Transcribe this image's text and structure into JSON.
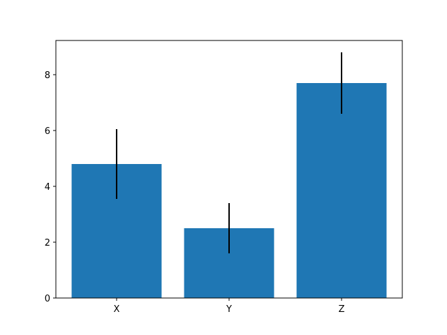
{
  "chart_data": {
    "type": "bar",
    "categories": [
      "X",
      "Y",
      "Z"
    ],
    "values": [
      4.8,
      2.5,
      7.7
    ],
    "errors": [
      1.25,
      0.9,
      1.1
    ],
    "color": "#1f77b4",
    "ylim": [
      0,
      9.225
    ],
    "yticks": [
      0,
      2,
      4,
      6,
      8
    ],
    "grid": false
  }
}
